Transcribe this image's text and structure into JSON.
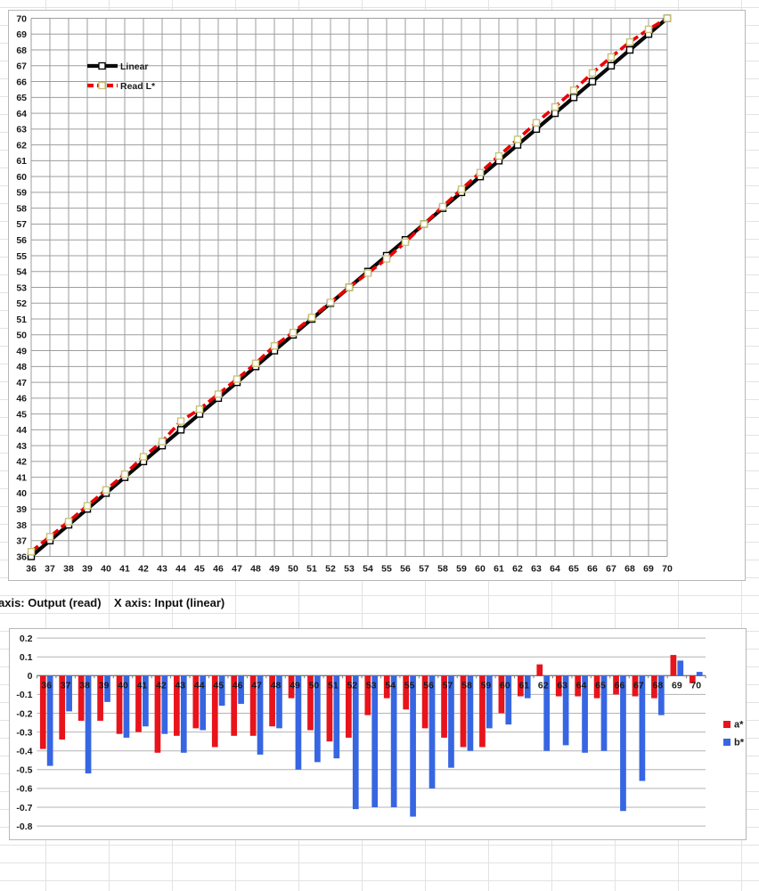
{
  "captions": {
    "y_axis_note": "axis: Output (read)",
    "x_axis_note": "X axis: Input (linear)"
  },
  "colors": {
    "grid_top": "#9d9d9d",
    "grid_bottom": "#b3b3b3",
    "zero_axis": "#7a7a7a",
    "tick_text": "#1a1a1a",
    "linear_line": "#0a0a0a",
    "read_line": "#ec0000",
    "a_star": "#e8131b",
    "b_star": "#3766e3",
    "marker_fill": "#ffffff",
    "marker_stroke_linear": "#000000",
    "marker_stroke_read": "#c9c377"
  },
  "chart_data": [
    {
      "type": "line",
      "title": "",
      "xlabel": "Input (linear)",
      "ylabel": "Output (read)",
      "xlim": [
        36,
        70
      ],
      "ylim": [
        36,
        70
      ],
      "tick_step": 1,
      "grid": "both",
      "legend_position": "top-left",
      "x": [
        36,
        37,
        38,
        39,
        40,
        41,
        42,
        43,
        44,
        45,
        46,
        47,
        48,
        49,
        50,
        51,
        52,
        53,
        54,
        55,
        56,
        57,
        58,
        59,
        60,
        61,
        62,
        63,
        64,
        65,
        66,
        67,
        68,
        69,
        70
      ],
      "series": [
        {
          "name": "Linear",
          "dash": "none",
          "values": [
            36,
            37,
            38,
            39,
            40,
            41,
            42,
            43,
            44,
            45,
            46,
            47,
            48,
            49,
            50,
            51,
            52,
            53,
            54,
            55,
            56,
            57,
            58,
            59,
            60,
            61,
            62,
            63,
            64,
            65,
            66,
            67,
            68,
            69,
            70
          ]
        },
        {
          "name": "Read L*",
          "dash": "dashed",
          "values": [
            36.3,
            37.25,
            38.2,
            39.2,
            40.2,
            41.2,
            42.3,
            43.25,
            44.55,
            45.3,
            46.25,
            47.2,
            48.2,
            49.3,
            50.15,
            51.1,
            52.05,
            53.0,
            53.9,
            54.8,
            55.85,
            57.0,
            58.1,
            59.2,
            60.25,
            61.3,
            62.35,
            63.4,
            64.4,
            65.45,
            66.55,
            67.55,
            68.5,
            69.3,
            70.0
          ]
        }
      ]
    },
    {
      "type": "bar",
      "title": "",
      "ylim": [
        -0.8,
        0.2
      ],
      "ytick_step": 0.1,
      "grid": "horizontal",
      "legend_position": "right",
      "categories": [
        36,
        37,
        38,
        39,
        40,
        41,
        42,
        43,
        44,
        45,
        46,
        47,
        48,
        49,
        50,
        51,
        52,
        53,
        54,
        55,
        56,
        57,
        58,
        59,
        60,
        61,
        62,
        63,
        64,
        65,
        66,
        67,
        68,
        69,
        70
      ],
      "series": [
        {
          "name": "a*",
          "values": [
            -0.39,
            -0.34,
            -0.24,
            -0.24,
            -0.31,
            -0.3,
            -0.41,
            -0.32,
            -0.28,
            -0.38,
            -0.32,
            -0.32,
            -0.27,
            -0.12,
            -0.29,
            -0.35,
            -0.33,
            -0.21,
            -0.12,
            -0.18,
            -0.28,
            -0.33,
            -0.38,
            -0.38,
            -0.2,
            -0.11,
            0.06,
            -0.11,
            -0.11,
            -0.12,
            -0.1,
            -0.11,
            -0.12,
            0.11,
            -0.04
          ]
        },
        {
          "name": "b*",
          "values": [
            -0.48,
            -0.19,
            -0.52,
            -0.14,
            -0.33,
            -0.27,
            -0.31,
            -0.41,
            -0.29,
            -0.16,
            -0.15,
            -0.42,
            -0.28,
            -0.5,
            -0.46,
            -0.44,
            -0.71,
            -0.7,
            -0.7,
            -0.75,
            -0.6,
            -0.49,
            -0.4,
            -0.28,
            -0.26,
            -0.12,
            -0.4,
            -0.37,
            -0.41,
            -0.4,
            -0.72,
            -0.56,
            -0.21,
            0.08,
            0.02
          ]
        }
      ]
    }
  ]
}
